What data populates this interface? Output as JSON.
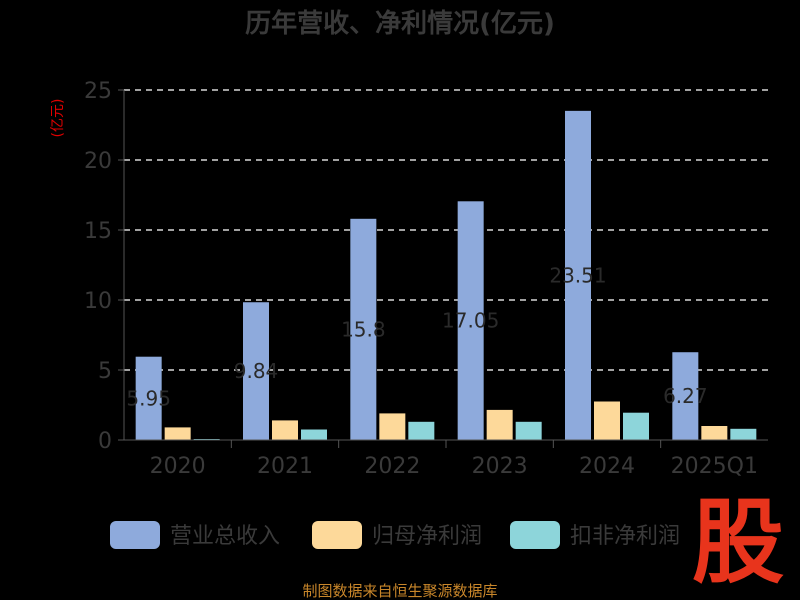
{
  "logo_text": "股",
  "source_text": "制图数据来自恒生聚源数据库",
  "chart_data": {
    "type": "bar",
    "title": "历年营收、净利情况(亿元)",
    "ylabel": "(亿元)",
    "xlabel": "",
    "ylim": [
      0,
      25
    ],
    "yticks": [
      0,
      5,
      10,
      15,
      20,
      25
    ],
    "grid": true,
    "legend_position": "bottom",
    "categories": [
      "2020",
      "2021",
      "2022",
      "2023",
      "2024",
      "2025Q1"
    ],
    "series": [
      {
        "name": "营业总收入",
        "color": "#8eaadc",
        "values": [
          5.95,
          9.84,
          15.8,
          17.05,
          23.51,
          6.27
        ],
        "labels": [
          "5.95",
          "9.84",
          "15.8",
          "17.05",
          "23.51",
          "6.27"
        ]
      },
      {
        "name": "归母净利润",
        "color": "#fdd99a",
        "values": [
          0.9,
          1.4,
          1.9,
          2.15,
          2.75,
          1.0
        ]
      },
      {
        "name": "扣非净利润",
        "color": "#8dd5da",
        "values": [
          0.05,
          0.75,
          1.3,
          1.3,
          1.95,
          0.8
        ]
      }
    ]
  }
}
